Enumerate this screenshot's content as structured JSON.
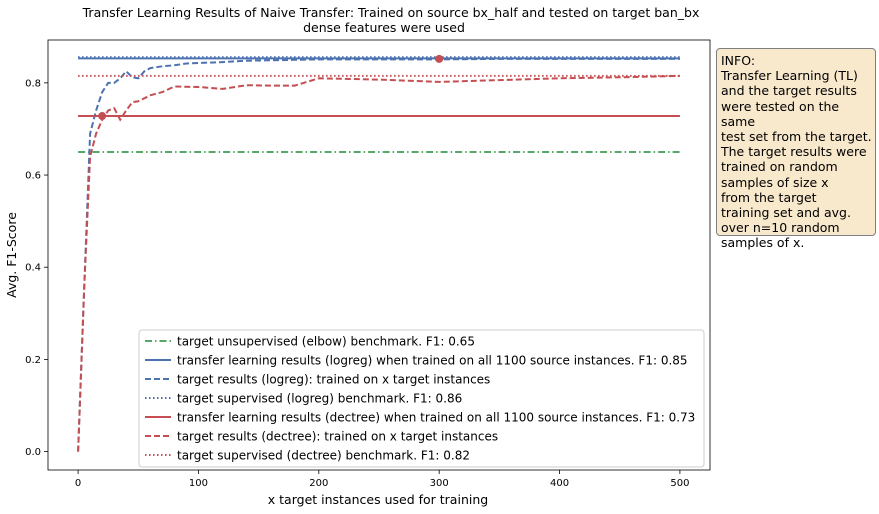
{
  "chart_data": {
    "type": "line",
    "title": "Transfer Learning Results of Naive Transfer: Trained on source bx_half and tested on target ban_bx",
    "subtitle": "dense features were used",
    "xlabel": "x target instances used for training",
    "ylabel": "Avg. F1-Score",
    "xlim": [
      -25,
      525
    ],
    "ylim": [
      -0.04,
      0.893
    ],
    "x_ticks": [
      0,
      100,
      200,
      300,
      400,
      500
    ],
    "y_ticks": [
      0.0,
      0.2,
      0.4,
      0.6,
      0.8
    ],
    "x_tick_labels": [
      "0",
      "100",
      "200",
      "300",
      "400",
      "500"
    ],
    "y_tick_labels": [
      "0.0",
      "0.2",
      "0.4",
      "0.6",
      "0.8"
    ],
    "grid": false,
    "legend_position": "lower-right",
    "series": [
      {
        "name": "target unsupervised (elbow) benchmark. F1: 0.65",
        "style": "dashdot",
        "color": "#55a868",
        "x": [
          0,
          500
        ],
        "y": [
          0.65,
          0.65
        ]
      },
      {
        "name": "transfer learning results (logreg) when trained on all 1100 source instances. F1: 0.85",
        "style": "solid",
        "color": "#4c72b0",
        "x": [
          0,
          500
        ],
        "y": [
          0.853,
          0.853
        ]
      },
      {
        "name": "target results (logreg): trained on x target instances",
        "style": "dashed",
        "color": "#4c72b0",
        "x": [
          0,
          5,
          10,
          15,
          20,
          25,
          30,
          35,
          40,
          45,
          50,
          55,
          60,
          70,
          80,
          90,
          100,
          120,
          140,
          160,
          180,
          200,
          250,
          300,
          350,
          400,
          450,
          500
        ],
        "y": [
          0.0,
          0.35,
          0.69,
          0.74,
          0.78,
          0.8,
          0.8,
          0.81,
          0.825,
          0.812,
          0.81,
          0.825,
          0.832,
          0.836,
          0.838,
          0.842,
          0.843,
          0.845,
          0.848,
          0.849,
          0.85,
          0.851,
          0.851,
          0.851,
          0.852,
          0.852,
          0.852,
          0.852
        ]
      },
      {
        "name": "target supervised (logreg) benchmark. F1: 0.86",
        "style": "dotted",
        "color": "#4c72b0",
        "x": [
          0,
          500
        ],
        "y": [
          0.856,
          0.856
        ]
      },
      {
        "name": "transfer learning results (dectree) when trained on all 1100 source instances. F1: 0.73",
        "style": "solid",
        "color": "#c44e52",
        "x": [
          0,
          500
        ],
        "y": [
          0.728,
          0.728
        ]
      },
      {
        "name": "target results (dectree): trained on x target instances",
        "style": "dashed",
        "color": "#c44e52",
        "x": [
          0,
          5,
          10,
          15,
          20,
          25,
          30,
          35,
          40,
          45,
          50,
          60,
          70,
          80,
          100,
          120,
          140,
          160,
          180,
          200,
          250,
          300,
          350,
          400,
          450,
          500
        ],
        "y": [
          0.0,
          0.35,
          0.64,
          0.69,
          0.72,
          0.74,
          0.745,
          0.72,
          0.74,
          0.758,
          0.76,
          0.773,
          0.78,
          0.792,
          0.791,
          0.787,
          0.795,
          0.794,
          0.794,
          0.81,
          0.807,
          0.802,
          0.806,
          0.81,
          0.812,
          0.815
        ]
      },
      {
        "name": "target supervised (dectree) benchmark. F1: 0.82",
        "style": "dotted",
        "color": "#c44e52",
        "x": [
          0,
          500
        ],
        "y": [
          0.815,
          0.815
        ]
      }
    ],
    "markers": [
      {
        "x": 20,
        "y": 0.728,
        "color": "#c44e52"
      },
      {
        "x": 300,
        "y": 0.852,
        "color": "#c44e52"
      }
    ]
  },
  "info_box": {
    "text": "INFO:\nTransfer Learning (TL)\nand the target results\nwere tested on the same\ntest set from the target.\nThe target results were\ntrained on random\nsamples of size x\nfrom the target\ntraining set and avg.\nover n=10 random\nsamples of x."
  }
}
